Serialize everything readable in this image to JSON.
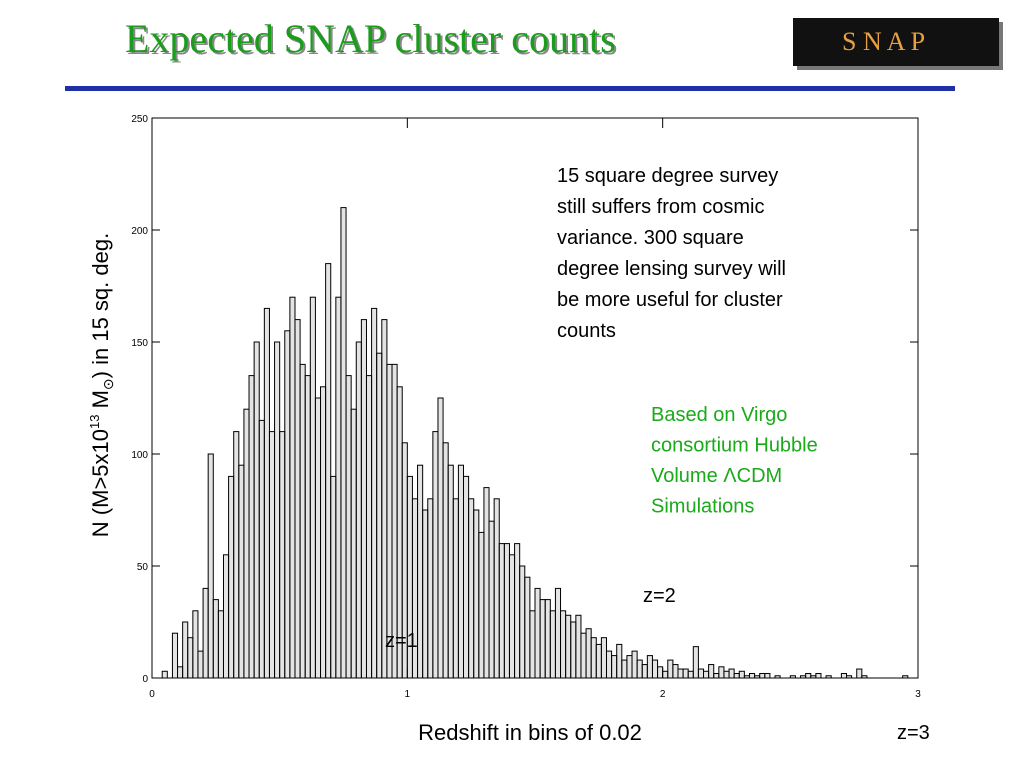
{
  "title": "Expected SNAP cluster counts",
  "logo_text": "S N A P",
  "chart_data": {
    "type": "histogram",
    "x_label": "Redshift in bins of 0.02",
    "y_label_parts": [
      "N (M>5x10",
      "13",
      " M",
      "⊙",
      ") in 15 sq. deg."
    ],
    "xlim": [
      0,
      3
    ],
    "xticks": [
      0,
      1,
      2,
      3
    ],
    "ylim": [
      0,
      250
    ],
    "yticks": [
      0,
      50,
      100,
      150,
      200,
      250
    ],
    "color": "#000000",
    "bins": [
      0,
      0.02,
      0.04,
      0.06,
      0.08,
      0.1,
      0.12,
      0.14,
      0.16,
      0.18,
      0.2,
      0.22,
      0.24,
      0.26,
      0.28,
      0.3,
      0.32,
      0.34,
      0.36,
      0.38,
      0.4,
      0.42,
      0.44,
      0.46,
      0.48,
      0.5,
      0.52,
      0.54,
      0.56,
      0.58,
      0.6,
      0.62,
      0.64,
      0.66,
      0.68,
      0.7,
      0.72,
      0.74,
      0.76,
      0.78,
      0.8,
      0.82,
      0.84,
      0.86,
      0.88,
      0.9,
      0.92,
      0.94,
      0.96,
      0.98,
      1,
      1.02,
      1.04,
      1.06,
      1.08,
      1.1,
      1.12,
      1.14,
      1.16,
      1.18,
      1.2,
      1.22,
      1.24,
      1.26,
      1.28,
      1.3,
      1.32,
      1.34,
      1.36,
      1.38,
      1.4,
      1.42,
      1.44,
      1.46,
      1.48,
      1.5,
      1.52,
      1.54,
      1.56,
      1.58,
      1.6,
      1.62,
      1.64,
      1.66,
      1.68,
      1.7,
      1.72,
      1.74,
      1.76,
      1.78,
      1.8,
      1.82,
      1.84,
      1.86,
      1.88,
      1.9,
      1.92,
      1.94,
      1.96,
      1.98,
      2,
      2.02,
      2.04,
      2.06,
      2.08,
      2.1,
      2.12,
      2.14,
      2.16,
      2.18,
      2.2,
      2.22,
      2.24,
      2.26,
      2.28,
      2.3,
      2.32,
      2.34,
      2.36,
      2.38,
      2.4,
      2.42,
      2.44,
      2.46,
      2.48,
      2.5,
      2.52,
      2.54,
      2.56,
      2.58,
      2.6,
      2.62,
      2.64,
      2.66,
      2.68,
      2.7,
      2.72,
      2.74,
      2.76,
      2.78,
      2.8,
      2.82,
      2.84,
      2.86,
      2.88,
      2.9,
      2.92,
      2.94,
      2.96,
      2.98,
      3
    ],
    "values": [
      0,
      0,
      3,
      0,
      20,
      5,
      25,
      18,
      30,
      12,
      40,
      100,
      35,
      30,
      55,
      90,
      110,
      95,
      120,
      135,
      150,
      115,
      165,
      110,
      150,
      110,
      155,
      170,
      160,
      140,
      135,
      170,
      125,
      130,
      185,
      90,
      170,
      210,
      135,
      120,
      150,
      160,
      135,
      165,
      145,
      160,
      140,
      140,
      130,
      105,
      90,
      80,
      95,
      75,
      80,
      110,
      125,
      105,
      95,
      80,
      95,
      90,
      80,
      75,
      65,
      85,
      70,
      80,
      60,
      60,
      55,
      60,
      50,
      45,
      30,
      40,
      35,
      35,
      30,
      40,
      30,
      28,
      25,
      28,
      20,
      22,
      18,
      15,
      18,
      12,
      10,
      15,
      8,
      10,
      12,
      8,
      6,
      10,
      8,
      5,
      3,
      8,
      6,
      4,
      4,
      3,
      14,
      4,
      3,
      6,
      2,
      5,
      3,
      4,
      2,
      3,
      1,
      2,
      1,
      2,
      2,
      0,
      1,
      0,
      0,
      1,
      0,
      1,
      2,
      1,
      2,
      0,
      1,
      0,
      0,
      2,
      1,
      0,
      4,
      1,
      0,
      0,
      0,
      0,
      0,
      0,
      0,
      1,
      0,
      0
    ],
    "annotations": [
      {
        "text": "z=1"
      },
      {
        "text": "z=2"
      },
      {
        "text": "z=3"
      }
    ],
    "note_lines": [
      "15 square degree survey",
      "still suffers from cosmic",
      "variance. 300 square",
      "degree lensing survey will",
      "be more useful for cluster",
      "counts"
    ],
    "source_lines": [
      "Based on Virgo",
      "consortium Hubble",
      "Volume ΛCDM",
      "Simulations"
    ]
  }
}
